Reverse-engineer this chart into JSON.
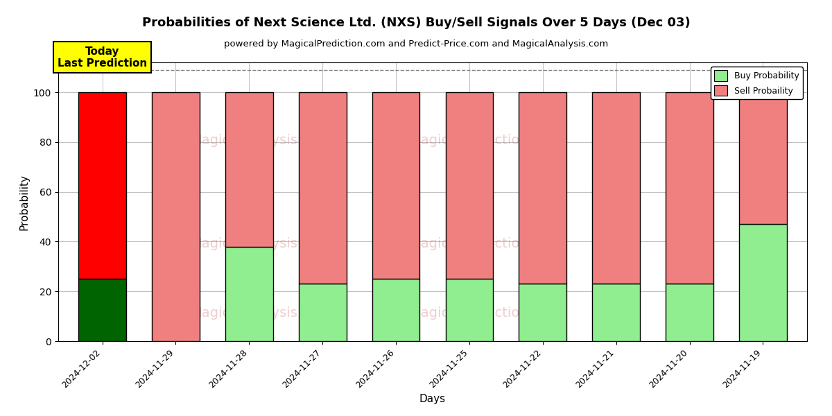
{
  "title": "Probabilities of Next Science Ltd. (NXS) Buy/Sell Signals Over 5 Days (Dec 03)",
  "subtitle": "powered by MagicalPrediction.com and Predict-Price.com and MagicalAnalysis.com",
  "xlabel": "Days",
  "ylabel": "Probability",
  "categories": [
    "2024-12-02",
    "2024-11-29",
    "2024-11-28",
    "2024-11-27",
    "2024-11-26",
    "2024-11-25",
    "2024-11-22",
    "2024-11-21",
    "2024-11-20",
    "2024-11-19"
  ],
  "buy_values": [
    25,
    0,
    38,
    23,
    25,
    25,
    23,
    23,
    23,
    47
  ],
  "sell_values": [
    75,
    100,
    62,
    77,
    75,
    75,
    77,
    77,
    77,
    53
  ],
  "today_buy_color": "#006400",
  "today_sell_color": "#ff0000",
  "normal_buy_color": "#90EE90",
  "normal_sell_color": "#F08080",
  "today_annotation_text": "Today\nLast Prediction",
  "today_annotation_bg": "#ffff00",
  "legend_buy_label": "Buy Probability",
  "legend_sell_label": "Sell Probaility",
  "ylim": [
    0,
    112
  ],
  "dashed_line_y": 109,
  "background_color": "#ffffff",
  "bar_width": 0.65,
  "edgecolor": "#000000"
}
